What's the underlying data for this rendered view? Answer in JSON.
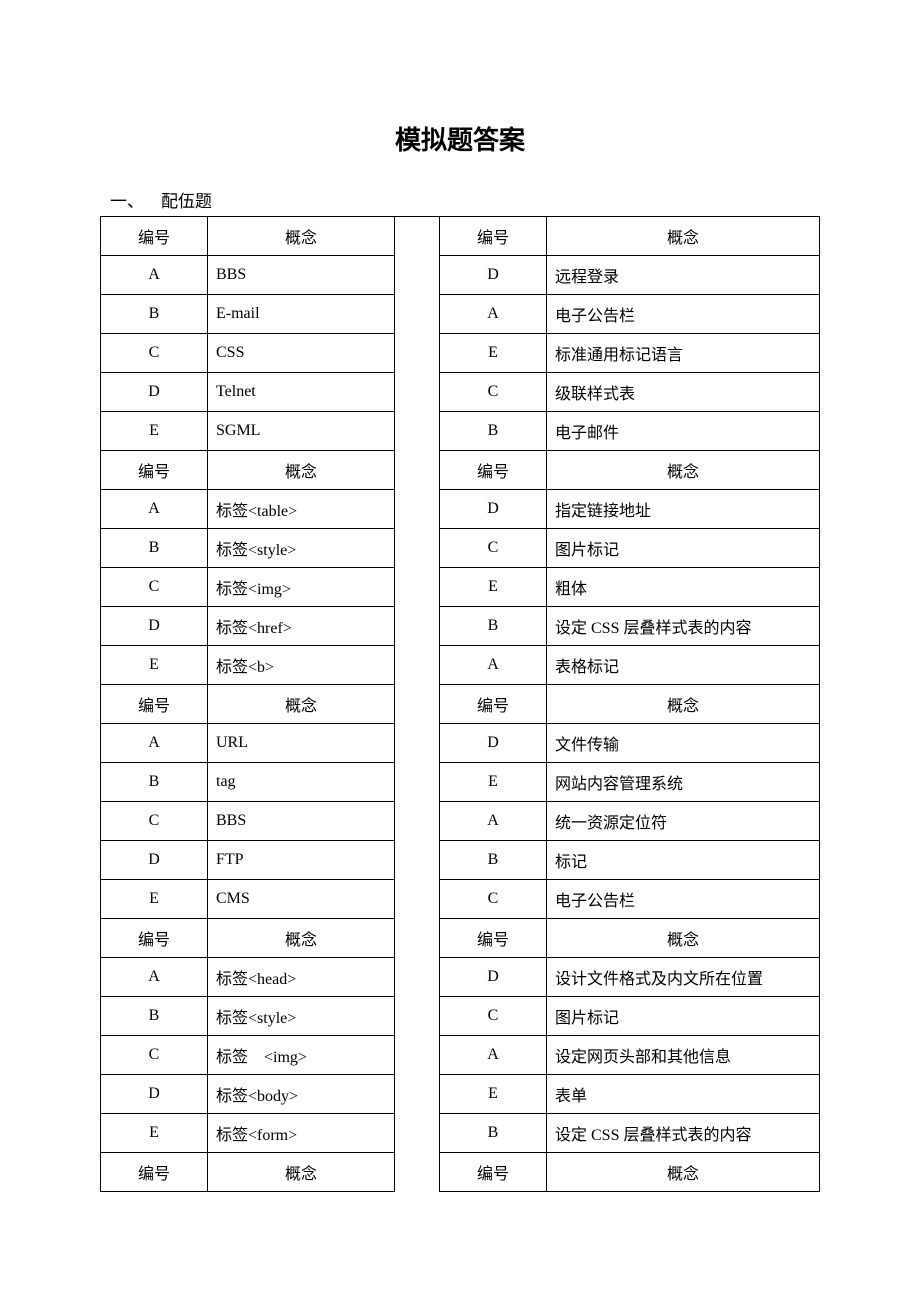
{
  "page_title": "模拟题答案",
  "section1_label": "一、 配伍题",
  "col_headers": {
    "id": "编号",
    "concept": "概念"
  },
  "groups": [
    {
      "left": [
        [
          "A",
          "BBS"
        ],
        [
          "B",
          "E-mail"
        ],
        [
          "C",
          "CSS"
        ],
        [
          "D",
          "Telnet"
        ],
        [
          "E",
          "SGML"
        ]
      ],
      "right": [
        [
          "D",
          "远程登录"
        ],
        [
          "A",
          "电子公告栏"
        ],
        [
          "E",
          "标准通用标记语言"
        ],
        [
          "C",
          "级联样式表"
        ],
        [
          "B",
          "电子邮件"
        ]
      ]
    },
    {
      "left": [
        [
          "A",
          "标签<table>"
        ],
        [
          "B",
          "标签<style>"
        ],
        [
          "C",
          "标签<img>"
        ],
        [
          "D",
          "标签<href>"
        ],
        [
          "E",
          "标签<b>"
        ]
      ],
      "right": [
        [
          "D",
          "指定链接地址"
        ],
        [
          "C",
          "图片标记"
        ],
        [
          "E",
          "粗体"
        ],
        [
          "B",
          "设定 CSS 层叠样式表的内容"
        ],
        [
          "A",
          "表格标记"
        ]
      ]
    },
    {
      "left": [
        [
          "A",
          "URL"
        ],
        [
          "B",
          "tag"
        ],
        [
          "C",
          "BBS"
        ],
        [
          "D",
          "FTP"
        ],
        [
          "E",
          "CMS"
        ]
      ],
      "right": [
        [
          "D",
          "文件传输"
        ],
        [
          "E",
          "网站内容管理系统"
        ],
        [
          "A",
          "统一资源定位符"
        ],
        [
          "B",
          "标记"
        ],
        [
          "C",
          "电子公告栏"
        ]
      ]
    },
    {
      "left": [
        [
          "A",
          "标签<head>"
        ],
        [
          "B",
          "标签<style>"
        ],
        [
          "C",
          "标签 <img>"
        ],
        [
          "D",
          "标签<body>"
        ],
        [
          "E",
          "标签<form>"
        ]
      ],
      "right": [
        [
          "D",
          "设计文件格式及内文所在位置"
        ],
        [
          "C",
          "图片标记"
        ],
        [
          "A",
          "设定网页头部和其他信息"
        ],
        [
          "E",
          "表单"
        ],
        [
          "B",
          "设定 CSS 层叠样式表的内容"
        ]
      ]
    },
    {
      "left": [],
      "right": []
    }
  ]
}
